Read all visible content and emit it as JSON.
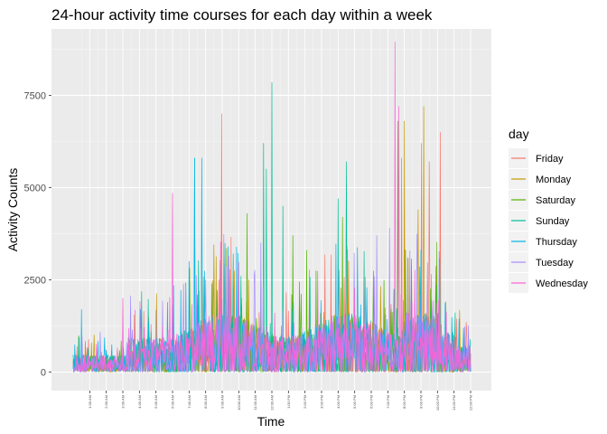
{
  "chart_data": {
    "type": "line",
    "title": "24-hour activity time courses for each day within a week",
    "xlabel": "Time",
    "ylabel": "Activity Counts",
    "xlim": [
      0,
      1440
    ],
    "ylim": [
      -500,
      9300
    ],
    "y_ticks": [
      0,
      2500,
      5000,
      7500
    ],
    "y_tick_labels": [
      "0",
      "2500",
      "5000",
      "7500"
    ],
    "x_ticks": [
      60,
      120,
      180,
      240,
      300,
      360,
      420,
      480,
      540,
      600,
      660,
      720,
      780,
      840,
      900,
      960,
      1020,
      1080,
      1140,
      1200,
      1260,
      1320,
      1380,
      1440
    ],
    "x_tick_labels": [
      "1:00 AM",
      "2:00 AM",
      "3:00 AM",
      "4:00 AM",
      "5:00 AM",
      "6:00 AM",
      "7:00 AM",
      "8:00 AM",
      "9:00 AM",
      "10:00 AM",
      "11:00 AM",
      "12:00 AM",
      "1:00 PM",
      "2:00 PM",
      "3:00 PM",
      "4:00 PM",
      "5:00 PM",
      "6:00 PM",
      "7:00 PM",
      "8:00 PM",
      "9:00 PM",
      "10:00 PM",
      "11:00 PM",
      "12:00 PM"
    ],
    "grid": true,
    "legend_title": "day",
    "legend_position": "right",
    "series": [
      {
        "name": "Friday",
        "color": "#F8766D",
        "seed": 11,
        "peaks": [
          [
            538,
            7000
          ],
          [
            1190,
            5800
          ],
          [
            1262,
            6200
          ],
          [
            1290,
            5700
          ],
          [
            1330,
            6500
          ]
        ]
      },
      {
        "name": "Monday",
        "color": "#C49A00",
        "seed": 23,
        "peaks": [
          [
            1200,
            6800
          ],
          [
            1270,
            7200
          ],
          [
            1250,
            4400
          ],
          [
            1350,
            1900
          ]
        ]
      },
      {
        "name": "Saturday",
        "color": "#53B400",
        "seed": 37,
        "peaks": [
          [
            1175,
            6800
          ],
          [
            975,
            4200
          ],
          [
            630,
            4300
          ],
          [
            795,
            3700
          ],
          [
            845,
            3300
          ]
        ]
      },
      {
        "name": "Sunday",
        "color": "#00C094",
        "seed": 41,
        "peaks": [
          [
            720,
            7850
          ],
          [
            690,
            6200
          ],
          [
            990,
            5700
          ],
          [
            700,
            5500
          ],
          [
            440,
            5800
          ],
          [
            760,
            4500
          ],
          [
            960,
            4700
          ]
        ]
      },
      {
        "name": "Thursday",
        "color": "#00B6EB",
        "seed": 53,
        "peaks": [
          [
            440,
            5800
          ],
          [
            465,
            5800
          ],
          [
            30,
            1700
          ],
          [
            420,
            3000
          ]
        ]
      },
      {
        "name": "Tuesday",
        "color": "#A58AFF",
        "seed": 67,
        "peaks": [
          [
            1100,
            3700
          ],
          [
            1145,
            3900
          ],
          [
            680,
            3500
          ],
          [
            480,
            2500
          ]
        ]
      },
      {
        "name": "Wednesday",
        "color": "#FB61D7",
        "seed": 79,
        "peaks": [
          [
            1165,
            8950
          ],
          [
            360,
            4850
          ],
          [
            180,
            2000
          ],
          [
            1180,
            7200
          ]
        ]
      }
    ]
  }
}
